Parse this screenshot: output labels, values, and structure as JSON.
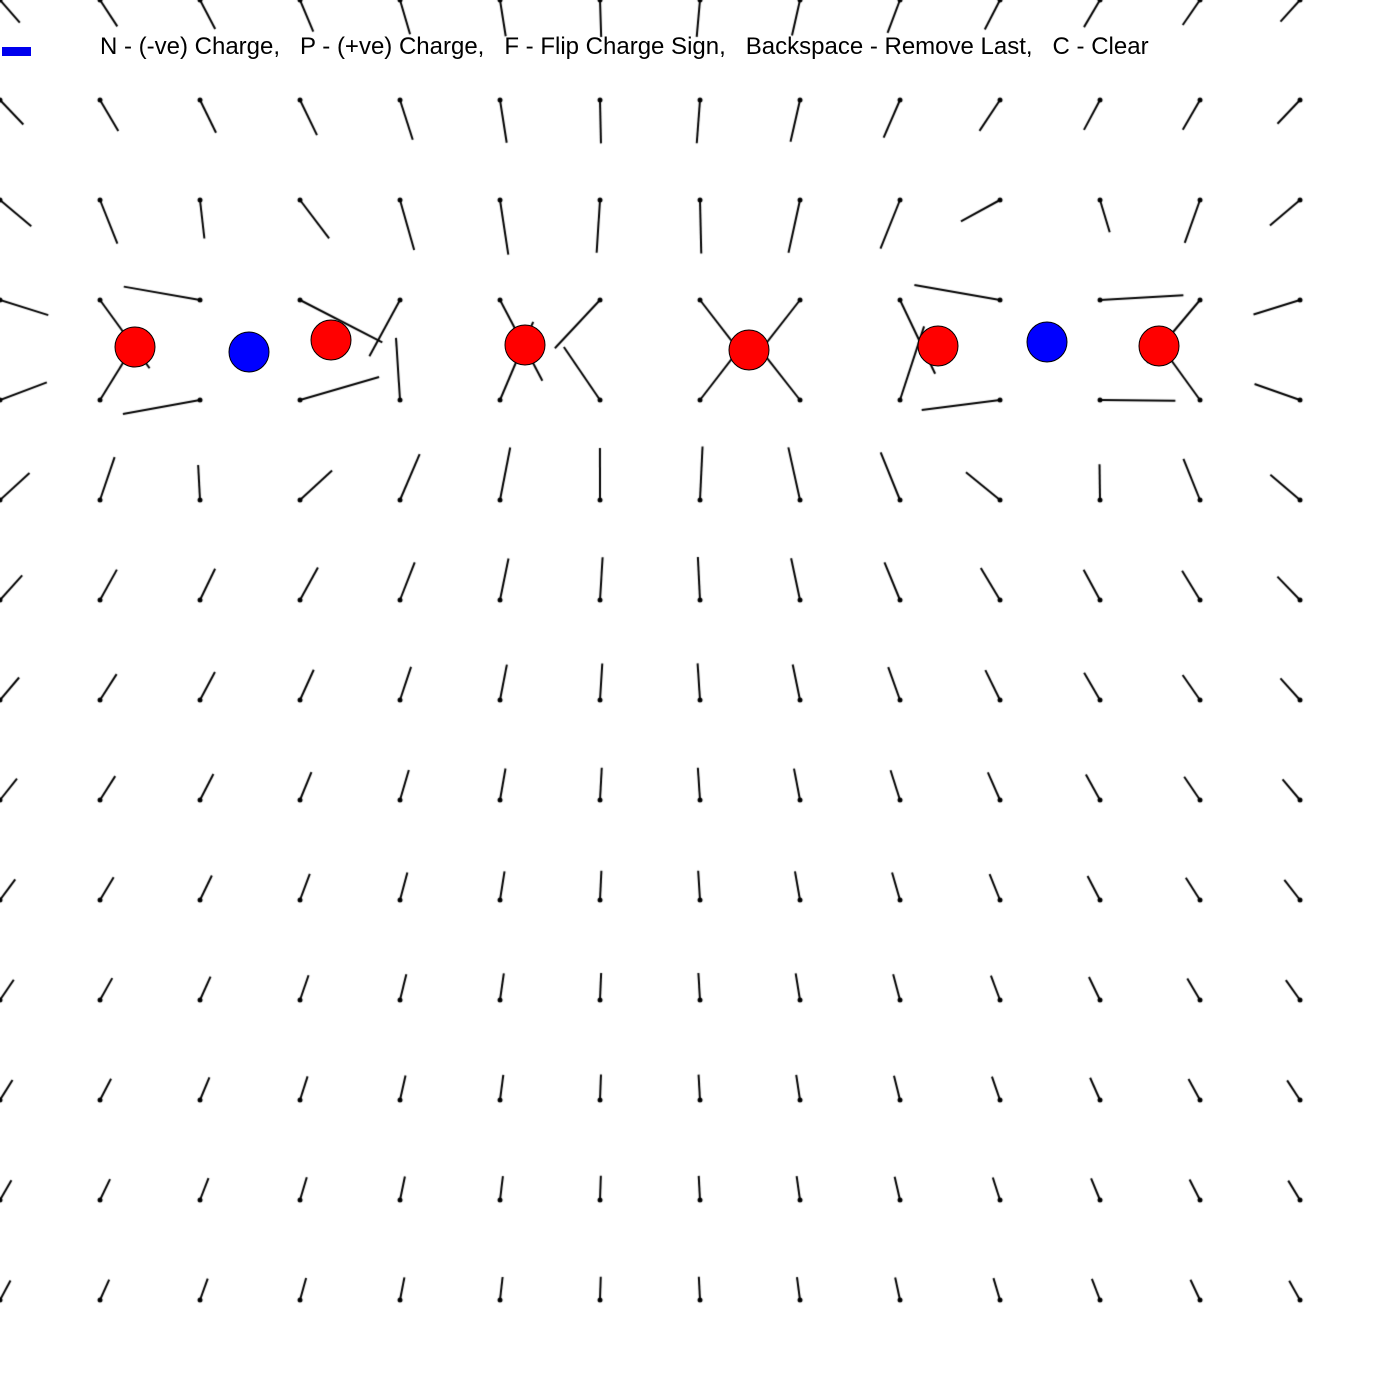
{
  "help": {
    "text": "N - (-ve) Charge,   P - (+ve) Charge,   F - Flip Charge Sign,   Backspace - Remove Last,   C - Clear"
  },
  "mode": {
    "current_charge_sign": "negative",
    "indicator_color": "#0000ee"
  },
  "colors": {
    "positive": "#ff0000",
    "negative": "#0000ff",
    "outline": "#000000",
    "field_line": "#000000",
    "background": "#ffffff"
  },
  "charges": [
    {
      "sign": "positive"
    },
    {
      "sign": "negative"
    },
    {
      "sign": "positive"
    },
    {
      "sign": "positive"
    },
    {
      "sign": "positive"
    },
    {
      "sign": "positive"
    },
    {
      "sign": "negative"
    },
    {
      "sign": "positive"
    }
  ]
}
